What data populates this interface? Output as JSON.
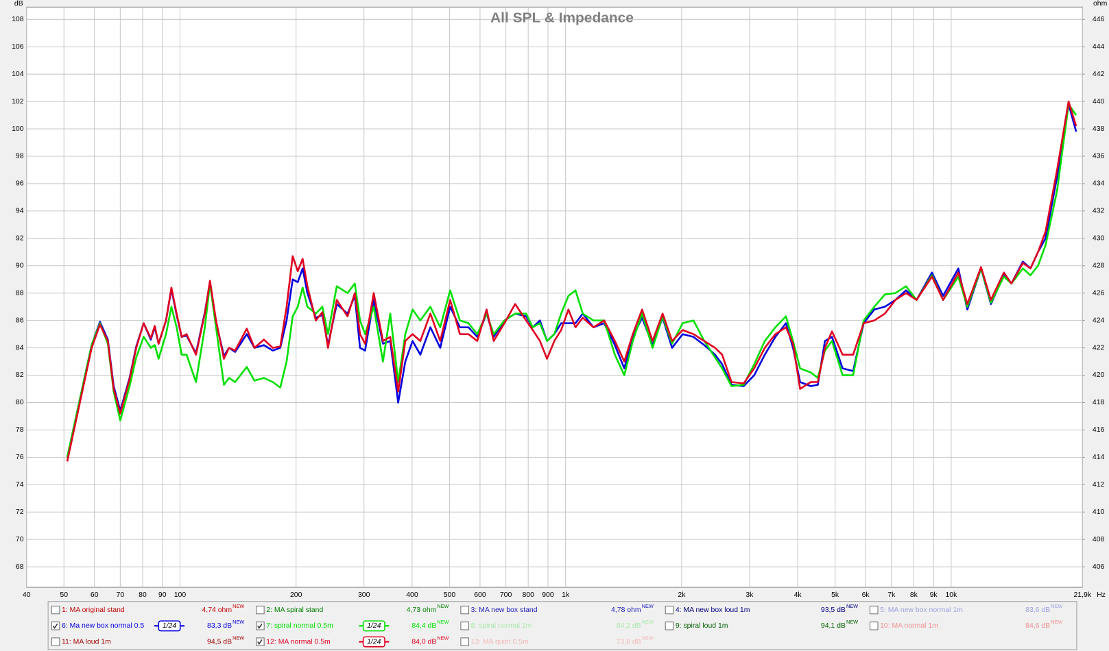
{
  "chart_data": {
    "type": "line",
    "title": "All SPL & Impedance",
    "y_unit": "dB",
    "y2_unit": "ohm",
    "x_unit": "Hz",
    "xscale": "log",
    "grid": true,
    "xlim": [
      40,
      21900
    ],
    "ylim": [
      66.5,
      108.9
    ],
    "y2lim": [
      404.5,
      446.9
    ],
    "xticks": [
      40,
      50,
      60,
      70,
      80,
      90,
      100,
      200,
      300,
      400,
      500,
      600,
      700,
      800,
      900,
      {
        "value": 1000,
        "label": "1k"
      },
      {
        "value": 2000,
        "label": "2k"
      },
      {
        "value": 3000,
        "label": "3k"
      },
      {
        "value": 4000,
        "label": "4k"
      },
      {
        "value": 5000,
        "label": "5k"
      },
      {
        "value": 6000,
        "label": "6k"
      },
      {
        "value": 7000,
        "label": "7k"
      },
      {
        "value": 8000,
        "label": "8k"
      },
      {
        "value": 9000,
        "label": "9k"
      },
      {
        "value": 10000,
        "label": "10k"
      },
      {
        "value": 21900,
        "label": "21,9k"
      }
    ],
    "yticks": [
      68,
      70,
      72,
      74,
      76,
      78,
      80,
      82,
      84,
      86,
      88,
      90,
      92,
      94,
      96,
      98,
      100,
      102,
      104,
      106,
      108
    ],
    "y2ticks": [
      406,
      408,
      410,
      412,
      414,
      416,
      418,
      420,
      422,
      424,
      426,
      428,
      430,
      432,
      434,
      436,
      438,
      440,
      442,
      444,
      446
    ],
    "x": [
      51,
      59,
      62,
      65,
      67.3,
      70,
      74,
      77,
      80.5,
      84,
      86,
      88,
      92,
      95,
      98,
      101,
      104,
      110,
      116,
      119.6,
      124,
      130,
      134,
      139,
      149,
      156,
      165,
      174,
      182,
      189,
      196,
      202,
      208,
      214,
      225,
      234,
      242,
      255,
      272,
      284,
      293,
      302,
      318,
      336,
      351,
      368,
      384,
      401,
      420,
      446,
      473,
      502,
      532,
      560,
      590,
      624,
      651,
      694,
      740,
      790,
      822,
      858,
      895,
      935,
      974,
      1017,
      1061,
      1108,
      1181,
      1259,
      1342,
      1420,
      1494,
      1579,
      1681,
      1785,
      1889,
      2012,
      2146,
      2289,
      2441,
      2547,
      2693,
      2896,
      3085,
      3286,
      3500,
      3728,
      3889,
      4057,
      4324,
      4510,
      4705,
      4908,
      5228,
      5569,
      5931,
      6318,
      6730,
      7168,
      7636,
      8133,
      8914,
      9531,
      10437,
      11012,
      11952,
      12677,
      13697,
      14330,
      15347,
      16056,
      16797,
      17572,
      18823,
      20163,
      21091
    ],
    "series": [
      {
        "name": "1: MA original stand",
        "reading": "4,74 ohm",
        "badge": "NEW",
        "checked": false,
        "color": "#c00000"
      },
      {
        "name": "2: MA spiral stand",
        "reading": "4,73 ohm",
        "badge": "NEW",
        "checked": false,
        "color": "#008000"
      },
      {
        "name": "3: MA new box stand",
        "reading": "4,78 ohm",
        "badge": "NEW",
        "checked": false,
        "color": "#2020c0"
      },
      {
        "name": "4: MA new box loud 1m",
        "reading": "93,5 dB",
        "badge": "NEW",
        "checked": false,
        "color": "#000080"
      },
      {
        "name": "5: MA new box normal 1m",
        "reading": "83,6 dB",
        "badge": "NEW",
        "checked": false,
        "color": "#9aa0e0"
      },
      {
        "name": "6: Ma new box normal 0.5",
        "reading": "83,3 dB",
        "badge": "NEW",
        "checked": true,
        "smoothing": "1/24",
        "color": "#0000e0",
        "values": [
          76,
          84.2,
          85.9,
          84.6,
          81.2,
          79.4,
          81.8,
          84.1,
          85.8,
          84.6,
          85.5,
          84.3,
          86,
          88.3,
          86.4,
          84.8,
          84.9,
          83.6,
          86.6,
          88.8,
          85.9,
          83.4,
          84,
          83.7,
          85,
          84,
          84.2,
          83.8,
          84,
          86,
          89,
          88.8,
          89.8,
          88,
          86.2,
          86.4,
          84.2,
          87.2,
          86.5,
          87.8,
          84,
          83.8,
          87.5,
          84.3,
          84.5,
          80,
          83,
          84.5,
          83.5,
          85.5,
          84,
          87,
          85.5,
          85.5,
          84.8,
          86.5,
          84.8,
          86,
          86.5,
          86.3,
          85.5,
          86,
          84.5,
          85,
          85.8,
          85.8,
          85.8,
          86.5,
          85.5,
          85.8,
          84.2,
          82.5,
          84.8,
          86.2,
          84.2,
          86.2,
          84,
          85,
          84.8,
          84.2,
          83.5,
          82.8,
          81.3,
          81.2,
          82,
          83.5,
          84.8,
          85.8,
          84,
          81.5,
          81.2,
          81.3,
          84.5,
          84.8,
          82.5,
          82.3,
          85.8,
          86.8,
          87,
          87.5,
          88.2,
          87.5,
          89.5,
          87.8,
          89.8,
          86.8,
          89.8,
          87.2,
          89.3,
          88.7,
          90.3,
          89.8,
          91,
          92,
          96.5,
          101.8,
          99.8
        ]
      },
      {
        "name": "7: spiral normal 0.5m",
        "reading": "84,4 dB",
        "badge": "NEW",
        "checked": true,
        "smoothing": "1/24",
        "color": "#00e000",
        "values": [
          76,
          84.2,
          85.8,
          84.3,
          80.8,
          78.7,
          81.2,
          83.3,
          84.8,
          84,
          84.2,
          83.2,
          85,
          87,
          85.5,
          83.5,
          83.5,
          81.5,
          85.5,
          88.7,
          85.5,
          81.3,
          81.8,
          81.5,
          82.6,
          81.6,
          81.8,
          81.5,
          81.1,
          83,
          86.3,
          87,
          88.4,
          87,
          86.5,
          87,
          85,
          88.5,
          88,
          88.7,
          86,
          85,
          87,
          83,
          86.5,
          81.5,
          85,
          86.8,
          86,
          87,
          85.5,
          88.2,
          86,
          85.8,
          85,
          86.5,
          85,
          86,
          86.5,
          86.5,
          85.5,
          85.8,
          84.5,
          85,
          86.5,
          87.8,
          88.2,
          86.5,
          86,
          86,
          83.5,
          82,
          84.5,
          86.5,
          84,
          86.3,
          84.3,
          85.8,
          86,
          84.5,
          83.3,
          82.5,
          81.2,
          81.3,
          82.8,
          84.5,
          85.5,
          86.3,
          84.5,
          82.5,
          82.2,
          81.8,
          83.8,
          84.5,
          82,
          82,
          86,
          87,
          87.9,
          88,
          88.5,
          87.5,
          89.3,
          87.5,
          89.2,
          87,
          89.8,
          87.3,
          89.2,
          88.7,
          89.8,
          89.3,
          90,
          91.5,
          95.5,
          101.8,
          101
        ]
      },
      {
        "name": "8: spiral normal 1m",
        "reading": "84,2 dB",
        "badge": "NEW",
        "checked": false,
        "color": "#a8e8a8"
      },
      {
        "name": "9: spiral loud 1m",
        "reading": "94,1 dB",
        "badge": "NEW",
        "checked": false,
        "color": "#006000"
      },
      {
        "name": "10: MA normal 1m",
        "reading": "84,6 dB",
        "badge": "NEW",
        "checked": false,
        "color": "#f09090"
      },
      {
        "name": "11: MA loud 1m",
        "reading": "94,5 dB",
        "badge": "NEW",
        "checked": false,
        "color": "#a00000"
      },
      {
        "name": "12: MA normal 0.5m",
        "reading": "84,0 dB",
        "badge": "NEW",
        "checked": true,
        "smoothing": "1/24",
        "color": "#e00020",
        "values": [
          75.7,
          84,
          85.7,
          84.5,
          81,
          79.2,
          81.7,
          84,
          85.8,
          84.7,
          85.6,
          84.3,
          86,
          88.4,
          86.5,
          84.8,
          85,
          83.5,
          86.5,
          88.9,
          86,
          83.2,
          84,
          83.8,
          85.4,
          84,
          84.6,
          84,
          84.1,
          87,
          90.7,
          89.6,
          90.5,
          88.5,
          86,
          86.6,
          84,
          87.5,
          86.3,
          88,
          85,
          84.3,
          88,
          84.5,
          84.8,
          80.8,
          84.5,
          85,
          84.5,
          86.5,
          84.5,
          87.5,
          85,
          85,
          84.5,
          86.8,
          84.5,
          85.8,
          87.2,
          86,
          85.3,
          84.5,
          83.2,
          84.5,
          85.3,
          86.8,
          85.5,
          86.2,
          85.5,
          86,
          84.5,
          83,
          85,
          86.8,
          84.5,
          86.5,
          84.5,
          85.3,
          85,
          84.5,
          84,
          83.5,
          81.5,
          81.4,
          82.5,
          84,
          85,
          85.5,
          84.3,
          81,
          81.5,
          81.5,
          84,
          85.2,
          83.5,
          83.5,
          85.8,
          86,
          86.5,
          87.5,
          88,
          87.5,
          89.2,
          87.5,
          89.5,
          87.2,
          89.9,
          87.5,
          89.5,
          88.7,
          90.2,
          89.8,
          91,
          92.5,
          97,
          102,
          100.2
        ]
      },
      {
        "name": "13: MA quiet 0.5m",
        "reading": "73,8 dB",
        "badge": "NEW",
        "checked": false,
        "color": "#f4b8b8"
      }
    ]
  }
}
